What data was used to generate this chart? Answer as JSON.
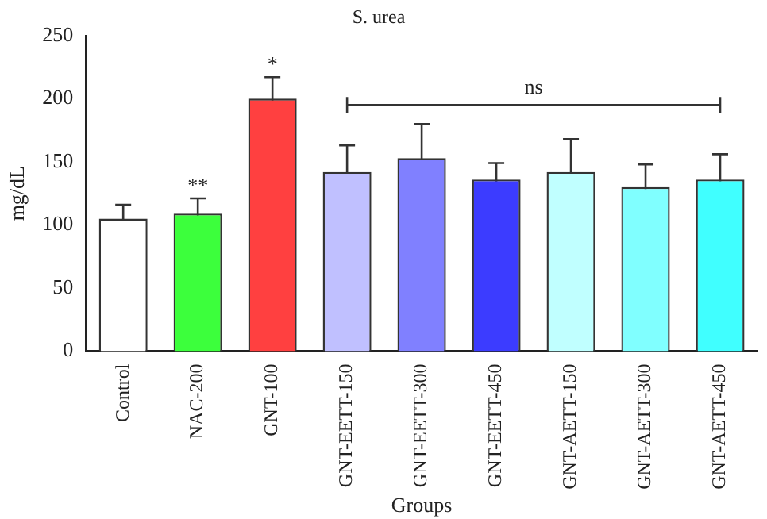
{
  "chart_data": {
    "type": "bar",
    "title": "S. urea",
    "xlabel": "Groups",
    "ylabel": "mg/dL",
    "categories": [
      "Control",
      "NAC-200",
      "GNT-100",
      "GNT-EETT-150",
      "GNT-EETT-300",
      "GNT-EETT-450",
      "GNT-AETT-150",
      "GNT-AETT-300",
      "GNT-AETT-450"
    ],
    "values": [
      105,
      109,
      200,
      142,
      153,
      136,
      142,
      130,
      136
    ],
    "errors": [
      11,
      12,
      17,
      21,
      27,
      13,
      26,
      18,
      20
    ],
    "colors": [
      "#ffffff",
      "#3cff3c",
      "#ff4040",
      "#c0c0ff",
      "#8080ff",
      "#3c3cff",
      "#c0ffff",
      "#80ffff",
      "#40ffff"
    ],
    "ylim": [
      0,
      250
    ],
    "yticks": [
      0,
      50,
      100,
      150,
      200,
      250
    ],
    "grid": false,
    "legend": false,
    "annotations": [
      {
        "text": "**",
        "x": "NAC-200",
        "y": 109
      },
      {
        "text": "*",
        "x": "GNT-100",
        "y": 200
      },
      "ns"
    ]
  }
}
